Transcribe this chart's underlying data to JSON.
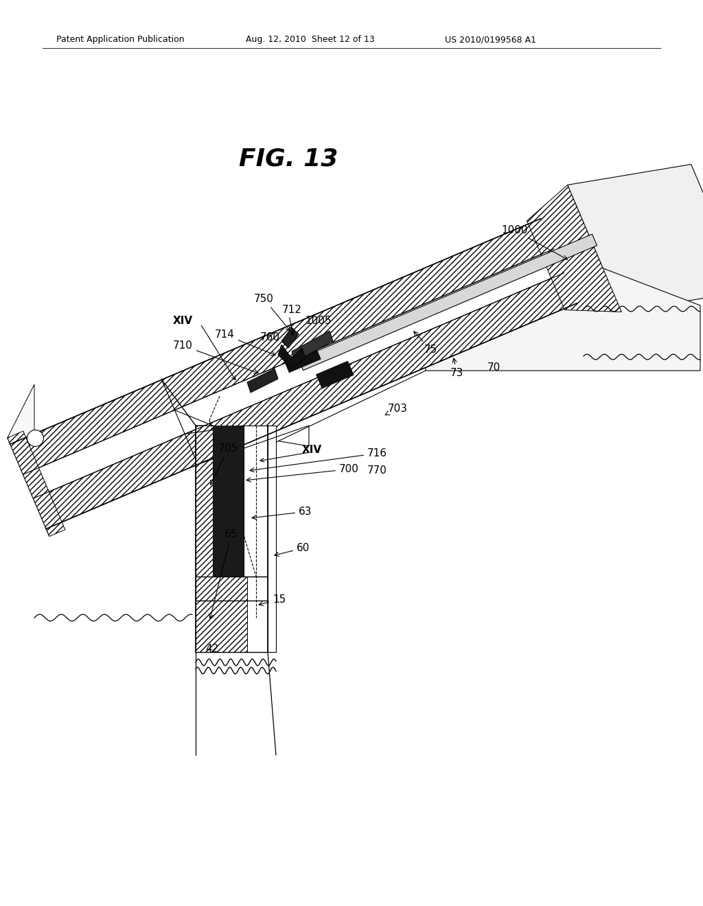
{
  "header_left": "Patent Application Publication",
  "header_mid": "Aug. 12, 2010  Sheet 12 of 13",
  "header_right": "US 2010/0199568 A1",
  "title": "FIG. 13",
  "bg_color": "#ffffff"
}
